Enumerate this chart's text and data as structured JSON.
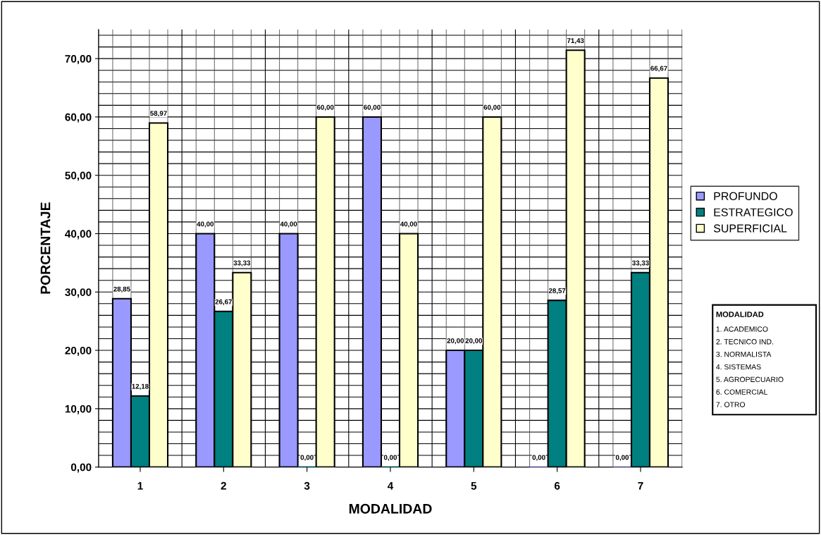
{
  "chart_data": {
    "type": "bar",
    "xlabel": "MODALIDAD",
    "ylabel": "PORCENTAJE",
    "categories": [
      "1",
      "2",
      "3",
      "4",
      "5",
      "6",
      "7"
    ],
    "series": [
      {
        "name": "PROFUNDO",
        "color": "#9999ff",
        "values": [
          28.85,
          40,
          40,
          60,
          20,
          0,
          0
        ],
        "value_labels": [
          "28,85",
          "40,00",
          "40,00",
          "60,00",
          "20,00",
          "0,00",
          "0,00"
        ]
      },
      {
        "name": "ESTRATEGICO",
        "color": "#008080",
        "values": [
          12.18,
          26.67,
          0,
          0,
          20,
          28.57,
          33.33
        ],
        "value_labels": [
          "12,18",
          "26,67",
          "0,00",
          "0,00",
          "20,00",
          "28,57",
          "33,33"
        ]
      },
      {
        "name": "SUPERFICIAL",
        "color": "#ffffcc",
        "values": [
          58.97,
          33.33,
          60,
          40,
          60,
          71.43,
          66.67
        ],
        "value_labels": [
          "58,97",
          "33,33",
          "60,00",
          "40,00",
          "60,00",
          "71,43",
          "66,67"
        ]
      }
    ],
    "ylim": [
      0,
      75
    ],
    "yticks": [
      {
        "value": 0,
        "label": "0,00"
      },
      {
        "value": 10,
        "label": "10,00"
      },
      {
        "value": 20,
        "label": "20,00"
      },
      {
        "value": 30,
        "label": "30,00"
      },
      {
        "value": 40,
        "label": "40,00"
      },
      {
        "value": 50,
        "label": "50,00"
      },
      {
        "value": 60,
        "label": "60,00"
      },
      {
        "value": 70,
        "label": "70,00"
      }
    ],
    "grid": true,
    "legend": "right",
    "annotations": [
      "MODALIDAD",
      "1. ACADEMICO",
      "2. TECNICO IND.",
      "3. NORMALISTA",
      "4. SISTEMAS",
      "5. AGROPECUARIO",
      "6. COMERCIAL",
      "7. OTRO"
    ]
  }
}
